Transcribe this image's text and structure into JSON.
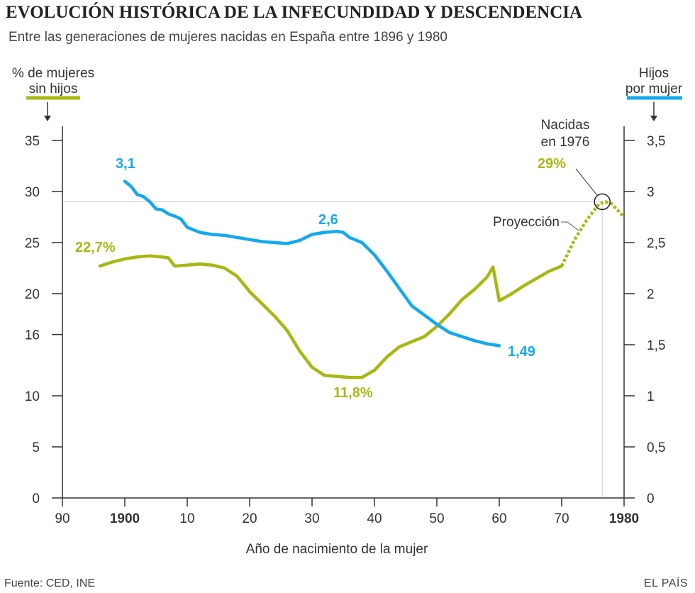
{
  "header": {
    "title": "EVOLUCIÓN HISTÓRICA DE LA INFECUNDIDAD Y DESCENDENCIA",
    "subtitle": "Entre las generaciones de mujeres nacidas en España entre 1896 y 1980"
  },
  "footer": {
    "source": "Fuente: CED, INE",
    "brand": "EL PAÍS"
  },
  "colors": {
    "green": "#a8b812",
    "blue": "#14a9ef",
    "axis": "#333333",
    "grid": "#cccccc"
  },
  "chart_data": {
    "type": "line",
    "title": "EVOLUCIÓN HISTÓRICA DE LA INFECUNDIDAD Y DESCENDENCIA",
    "xlabel": "Año de nacimiento de la mujer",
    "xlim": [
      1890,
      1980
    ],
    "x_ticks": [
      1890,
      1900,
      1910,
      1920,
      1930,
      1940,
      1950,
      1960,
      1970,
      1980
    ],
    "x_tick_labels": [
      "90",
      "1900",
      "10",
      "20",
      "30",
      "40",
      "50",
      "60",
      "70",
      "1980"
    ],
    "x_tick_bold": [
      false,
      true,
      false,
      false,
      false,
      false,
      false,
      false,
      false,
      true
    ],
    "left_axis": {
      "label_line1": "% de mujeres",
      "label_line2": "sin hijos",
      "ylim": [
        0,
        35
      ],
      "ticks": [
        0,
        5,
        10,
        16,
        20,
        25,
        30,
        35
      ],
      "tick_labels": [
        "0",
        "5",
        "10",
        "16",
        "20",
        "25",
        "30",
        "35"
      ]
    },
    "right_axis": {
      "label_line1": "Hijos",
      "label_line2": "por mujer",
      "ylim": [
        0,
        3.5
      ],
      "ticks": [
        0,
        0.5,
        1,
        1.5,
        2,
        2.5,
        3,
        3.5
      ],
      "tick_labels": [
        "0",
        "0,5",
        "1",
        "1,5",
        "2",
        "2,5",
        "3",
        "3,5"
      ]
    },
    "reference_line": {
      "y": 29,
      "x": 1976.5
    },
    "series": [
      {
        "name": "% de mujeres sin hijos",
        "axis": "left",
        "x": [
          1896,
          1898,
          1900,
          1902,
          1904,
          1906,
          1907,
          1908,
          1910,
          1912,
          1914,
          1916,
          1918,
          1920,
          1922,
          1924,
          1926,
          1928,
          1930,
          1932,
          1934,
          1936,
          1938,
          1940,
          1942,
          1944,
          1946,
          1948,
          1950,
          1952,
          1954,
          1956,
          1958,
          1959,
          1960,
          1962,
          1964,
          1966,
          1968,
          1970
        ],
        "y": [
          22.7,
          23.1,
          23.4,
          23.6,
          23.7,
          23.6,
          23.5,
          22.7,
          22.8,
          22.9,
          22.8,
          22.5,
          21.7,
          20.2,
          19.0,
          17.8,
          16.4,
          14.4,
          12.8,
          12.0,
          11.9,
          11.8,
          11.8,
          12.5,
          13.8,
          14.8,
          15.3,
          15.8,
          16.8,
          18.0,
          19.4,
          20.4,
          21.6,
          22.6,
          19.3,
          20.0,
          20.8,
          21.5,
          22.2,
          22.7
        ]
      },
      {
        "name": "% de mujeres sin hijos (proyección)",
        "axis": "left",
        "style": "dotted",
        "x": [
          1970,
          1972,
          1974,
          1976,
          1977,
          1978,
          1980
        ],
        "y": [
          22.7,
          25.2,
          27.2,
          28.8,
          29.0,
          28.8,
          27.5
        ]
      },
      {
        "name": "Hijos por mujer",
        "axis": "right",
        "x": [
          1900,
          1901,
          1902,
          1903,
          1904,
          1905,
          1906,
          1907,
          1908,
          1909,
          1910,
          1912,
          1914,
          1916,
          1918,
          1920,
          1922,
          1924,
          1926,
          1928,
          1930,
          1932,
          1934,
          1935,
          1936,
          1938,
          1940,
          1942,
          1944,
          1946,
          1948,
          1950,
          1952,
          1954,
          1956,
          1958,
          1960
        ],
        "y": [
          3.1,
          3.05,
          2.97,
          2.95,
          2.9,
          2.83,
          2.82,
          2.78,
          2.76,
          2.73,
          2.65,
          2.6,
          2.58,
          2.57,
          2.55,
          2.53,
          2.51,
          2.5,
          2.49,
          2.52,
          2.58,
          2.6,
          2.61,
          2.6,
          2.55,
          2.5,
          2.38,
          2.22,
          2.05,
          1.88,
          1.79,
          1.7,
          1.62,
          1.58,
          1.54,
          1.51,
          1.49
        ]
      }
    ],
    "annotations": {
      "green_start": "22,7%",
      "green_min": "11,8%",
      "green_peak": "29%",
      "blue_start": "3,1",
      "blue_peak": "2,6",
      "blue_end": "1,49",
      "nacidas_line1": "Nacidas",
      "nacidas_line2": "en 1976",
      "proyeccion": "Proyección"
    }
  }
}
